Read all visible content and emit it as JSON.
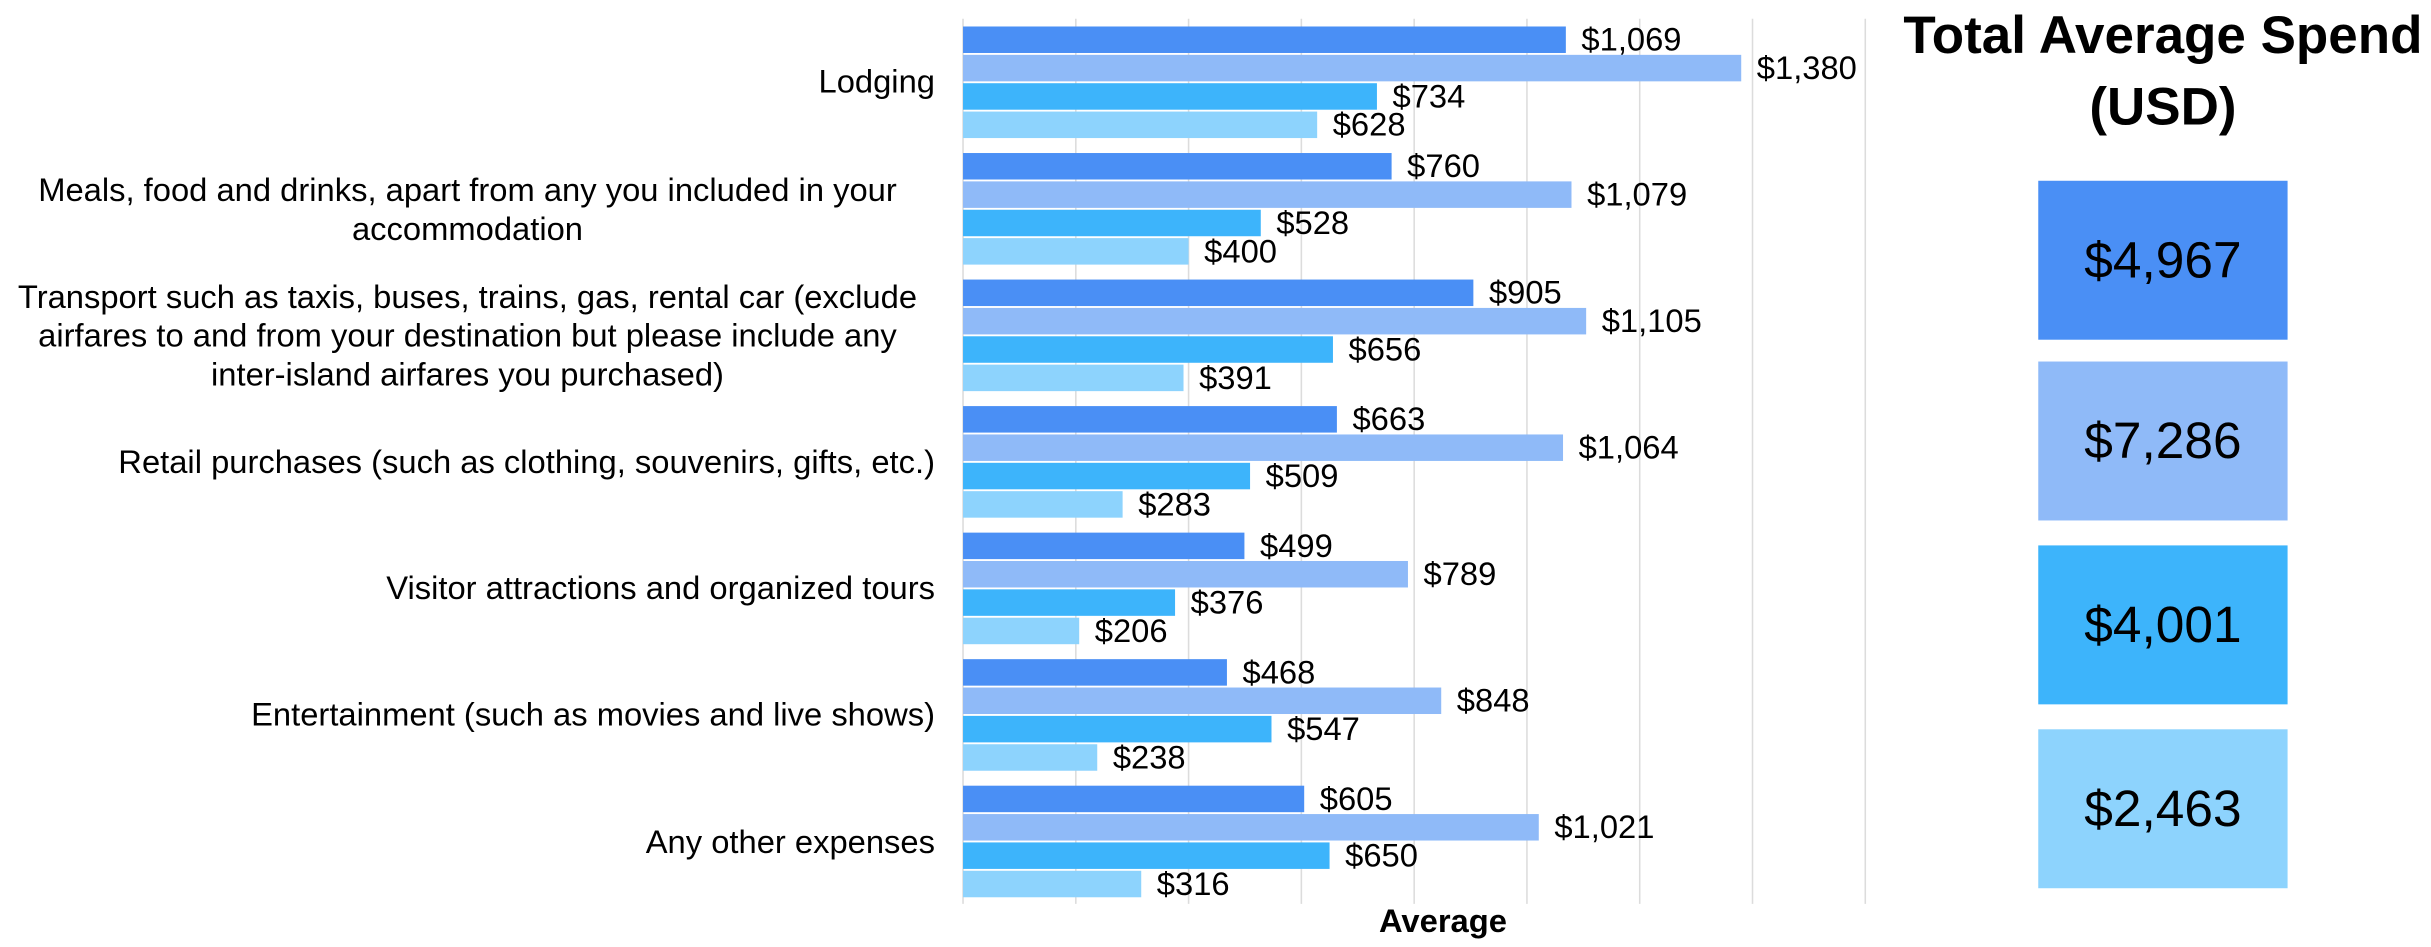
{
  "chart_data": {
    "type": "bar",
    "orientation": "horizontal",
    "x_label": "Average",
    "categories": [
      "Lodging",
      "Meals, food and drinks, apart from any you included in your accommodation",
      "Transport such as taxis, buses, trains, gas, rental car (exclude airfares to and from your destination but please include any inter-island airfares you purchased)",
      "Retail purchases (such as clothing, souvenirs, gifts, etc.)",
      "Visitor attractions and organized tours",
      "Entertainment (such as movies and live shows)",
      "Any other expenses"
    ],
    "series": [
      {
        "color": "#4a8ff5",
        "values": [
          1069,
          760,
          905,
          663,
          499,
          468,
          605
        ],
        "value_labels": [
          "$1,069",
          "$760",
          "$905",
          "$663",
          "$499",
          "$468",
          "$605"
        ]
      },
      {
        "color": "#8fbaf8",
        "values": [
          1380,
          1079,
          1105,
          1064,
          789,
          848,
          1021
        ],
        "value_labels": [
          "$1,380",
          "$1,079",
          "$1,105",
          "$1,064",
          "$789",
          "$848",
          "$1,021"
        ]
      },
      {
        "color": "#3db4fb",
        "values": [
          734,
          528,
          656,
          509,
          376,
          547,
          650
        ],
        "value_labels": [
          "$734",
          "$528",
          "$656",
          "$509",
          "$376",
          "$547",
          "$650"
        ]
      },
      {
        "color": "#8dd3fd",
        "values": [
          628,
          400,
          391,
          283,
          206,
          238,
          316
        ],
        "value_labels": [
          "$628",
          "$400",
          "$391",
          "$283",
          "$206",
          "$238",
          "$316"
        ]
      }
    ],
    "xlim": [
      0,
      1600
    ],
    "xticks": [
      0,
      200,
      400,
      600,
      800,
      1000,
      1200,
      1400,
      1600
    ],
    "grid": true,
    "totals": {
      "title": "Total Average Spend (USD)",
      "values": [
        4967,
        7286,
        4001,
        2463
      ],
      "value_labels": [
        "$4,967",
        "$7,286",
        "$4,001",
        "$2,463"
      ]
    }
  }
}
